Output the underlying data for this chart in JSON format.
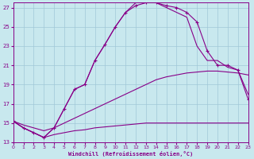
{
  "bg_color": "#c8e8ee",
  "grid_color": "#a0c8d8",
  "line_color": "#880088",
  "xlabel": "Windchill (Refroidissement éolien,°C)",
  "xlim": [
    0,
    23
  ],
  "ylim": [
    13,
    27.5
  ],
  "xticks": [
    0,
    1,
    2,
    3,
    4,
    5,
    6,
    7,
    8,
    9,
    10,
    11,
    12,
    13,
    14,
    15,
    16,
    17,
    18,
    19,
    20,
    21,
    22,
    23
  ],
  "yticks": [
    13,
    15,
    17,
    19,
    21,
    23,
    25,
    27
  ],
  "line1_x": [
    0,
    1,
    2,
    3,
    4,
    5,
    6,
    7,
    8,
    9,
    10,
    11,
    12,
    13,
    14,
    15,
    16,
    17,
    18,
    19,
    20,
    21,
    22,
    23
  ],
  "line1_y": [
    15.2,
    14.5,
    14.0,
    13.5,
    13.8,
    14.0,
    14.2,
    14.3,
    14.5,
    14.6,
    14.7,
    14.8,
    14.9,
    15.0,
    15.0,
    15.0,
    15.0,
    15.0,
    15.0,
    15.0,
    15.0,
    15.0,
    15.0,
    15.0
  ],
  "line2_x": [
    0,
    1,
    2,
    3,
    4,
    5,
    6,
    7,
    8,
    9,
    10,
    11,
    12,
    13,
    14,
    15,
    16,
    17,
    18,
    19,
    20,
    21,
    22,
    23
  ],
  "line2_y": [
    15.2,
    14.8,
    14.5,
    14.2,
    14.5,
    15.0,
    15.5,
    16.0,
    16.5,
    17.0,
    17.5,
    18.0,
    18.5,
    19.0,
    19.5,
    19.8,
    20.0,
    20.2,
    20.3,
    20.4,
    20.4,
    20.3,
    20.2,
    20.0
  ],
  "line3_x": [
    0,
    1,
    2,
    3,
    4,
    5,
    6,
    7,
    8,
    9,
    10,
    11,
    12,
    13,
    14,
    15,
    16,
    17,
    18,
    19,
    20,
    21,
    22,
    23
  ],
  "line3_y": [
    15.2,
    14.5,
    14.0,
    13.5,
    14.5,
    16.5,
    18.5,
    19.0,
    21.5,
    23.2,
    25.0,
    26.5,
    27.2,
    27.5,
    27.5,
    27.2,
    27.0,
    26.5,
    25.5,
    22.5,
    21.0,
    21.0,
    20.5,
    17.5
  ],
  "line3b_x": [
    0,
    1,
    2,
    3,
    4,
    5,
    6,
    7,
    8,
    9,
    10,
    11,
    12,
    13,
    14,
    15,
    16,
    17,
    18,
    19,
    20,
    21,
    22,
    23
  ],
  "line3b_y": [
    15.2,
    14.5,
    14.0,
    13.5,
    14.5,
    16.5,
    18.5,
    19.0,
    21.5,
    23.2,
    25.0,
    26.5,
    27.5,
    27.5,
    27.5,
    27.0,
    26.5,
    26.0,
    23.0,
    21.5,
    21.5,
    20.8,
    20.5,
    18.0
  ]
}
